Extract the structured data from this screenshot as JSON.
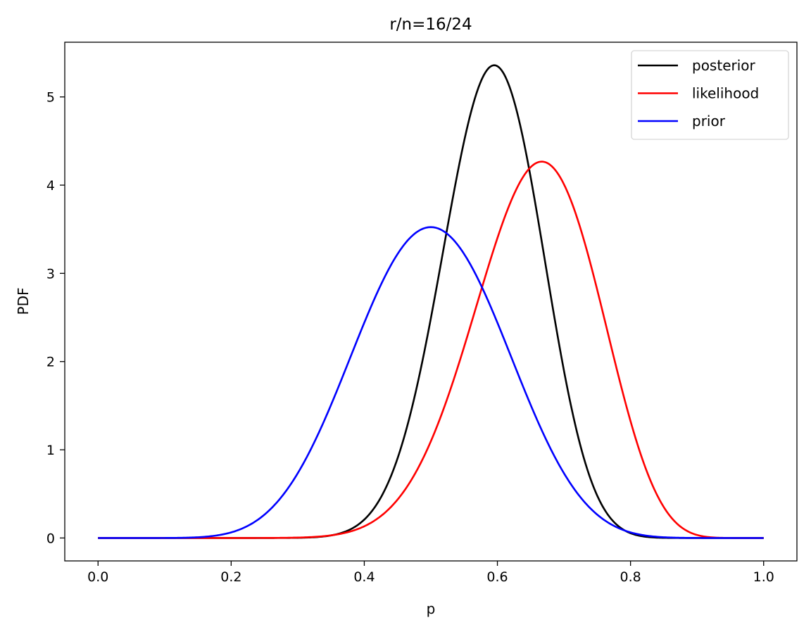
{
  "chart_data": {
    "type": "line",
    "title": "r/n=16/24",
    "xlabel": "p",
    "ylabel": "PDF",
    "xlim": [
      -0.05,
      1.05
    ],
    "ylim": [
      -0.26,
      5.62
    ],
    "xticks": [
      0.0,
      0.2,
      0.4,
      0.6,
      0.8,
      1.0
    ],
    "xtick_labels": [
      "0.0",
      "0.2",
      "0.4",
      "0.6",
      "0.8",
      "1.0"
    ],
    "yticks": [
      0,
      1,
      2,
      3,
      4,
      5
    ],
    "ytick_labels": [
      "0",
      "1",
      "2",
      "3",
      "4",
      "5"
    ],
    "grid": false,
    "legend_position": "top-right",
    "x_range": [
      0,
      1
    ],
    "series": [
      {
        "name": "posterior",
        "color": "#000000",
        "distribution": "beta",
        "alpha": 26,
        "beta": 18,
        "mode": 0.595,
        "peak": 5.36
      },
      {
        "name": "likelihood",
        "color": "#ff0000",
        "distribution": "beta",
        "alpha": 17,
        "beta": 9,
        "mode": 0.667,
        "peak": 4.27
      },
      {
        "name": "prior",
        "color": "#0000ff",
        "distribution": "beta",
        "alpha": 10,
        "beta": 10,
        "mode": 0.5,
        "peak": 3.52
      }
    ]
  }
}
